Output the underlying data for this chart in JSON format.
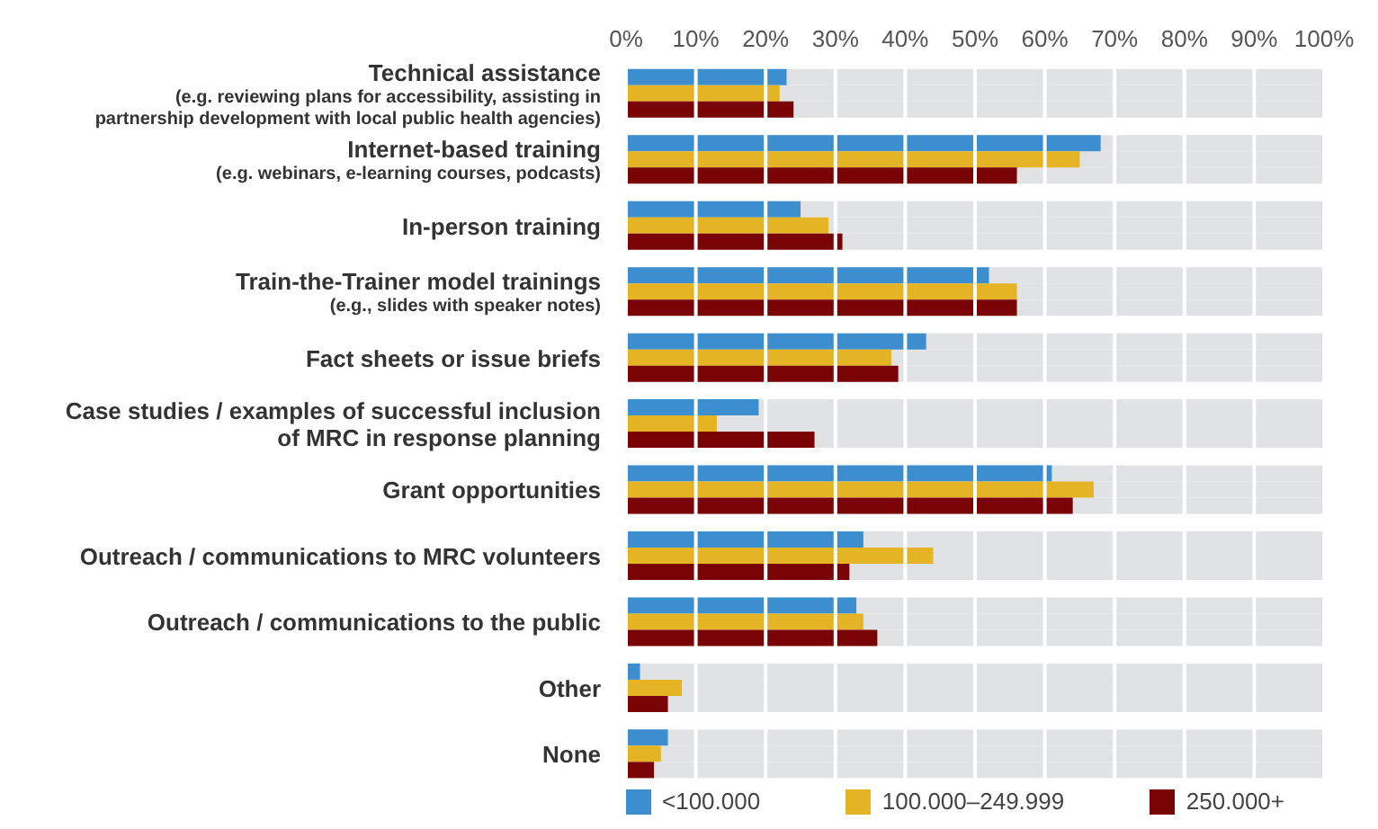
{
  "chart_data": {
    "type": "bar",
    "orientation": "horizontal",
    "categories": [
      "Technical assistance(e.g. reviewing plans for accessibility, assisting in partnership development with local public health agencies)",
      "Internet-based training (e.g. webinars, e-learning courses, podcasts)",
      "In-person training",
      "Train-the-Trainer model trainings (e.g., slides with speaker notes)",
      "Fact sheets or issue briefs",
      "Case studies / examples of successful inclusion of MRC in response planning",
      "Grant opportunities",
      "Outreach / communications to MRC volunteers",
      "Outreach / communications to the public",
      "Other",
      "None"
    ],
    "series": [
      {
        "name": "<100.000",
        "color": "#3d8ecf",
        "values": [
          23,
          68,
          25,
          52,
          43,
          19,
          61,
          34,
          33,
          2,
          6
        ]
      },
      {
        "name": "100.000–249.999",
        "color": "#e5b425",
        "values": [
          22,
          65,
          29,
          56,
          38,
          13,
          67,
          44,
          34,
          8,
          5
        ]
      },
      {
        "name": "250.000+",
        "color": "#7a0306",
        "values": [
          24,
          56,
          31,
          56,
          39,
          27,
          64,
          32,
          36,
          6,
          4
        ]
      }
    ],
    "xlim": [
      0,
      100
    ],
    "xticks": [
      {
        "value": 0,
        "label": "0%"
      },
      {
        "value": 10,
        "label": "10%"
      },
      {
        "value": 20,
        "label": "20%"
      },
      {
        "value": 30,
        "label": "30%"
      },
      {
        "value": 40,
        "label": "40%"
      },
      {
        "value": 50,
        "label": "50%"
      },
      {
        "value": 60,
        "label": "60%"
      },
      {
        "value": 70,
        "label": "70%"
      },
      {
        "value": 80,
        "label": "80%"
      },
      {
        "value": 90,
        "label": "90%"
      },
      {
        "value": 100,
        "label": "100%"
      }
    ],
    "grid": "x",
    "legend": "bottom"
  }
}
